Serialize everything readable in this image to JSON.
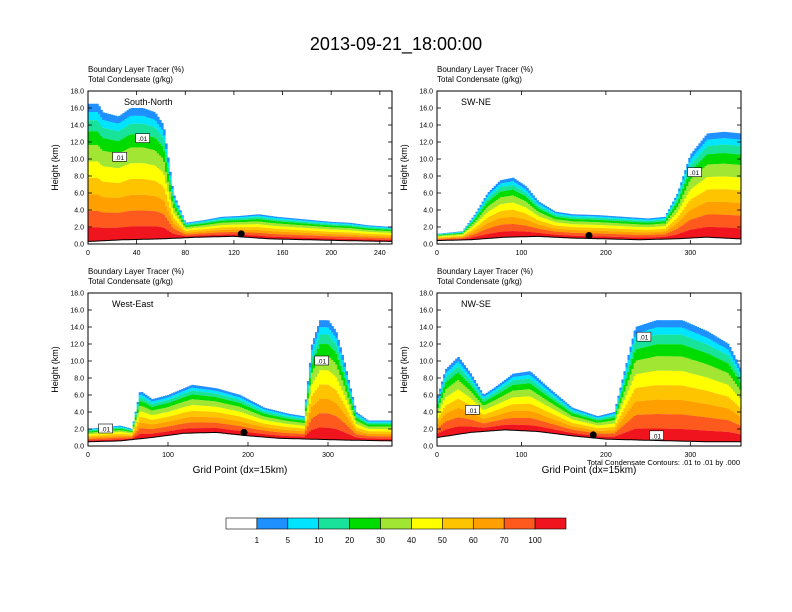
{
  "figure": {
    "title": "2013-09-21_18:00:00",
    "footer_note": "Total Condensate Contours: .01 to .01 by .000"
  },
  "colors": {
    "scale": [
      "#ffffff",
      "#1e90ff",
      "#00e5ff",
      "#19e39a",
      "#00dc00",
      "#a0e632",
      "#ffff00",
      "#ffc400",
      "#ffa000",
      "#ff5a1e",
      "#f0141e"
    ],
    "contour": "#000000",
    "frame": "#000000"
  },
  "colorbar": {
    "labels": [
      "1",
      "5",
      "10",
      "20",
      "30",
      "40",
      "50",
      "60",
      "70",
      "100"
    ]
  },
  "chart_data": [
    {
      "type": "heatmap",
      "panel_label": "South-North",
      "header_lines": [
        "Boundary Layer Tracer   (%)",
        "Total Condensate   (g/kg)"
      ],
      "ylabel": "Height (km)",
      "xlabel": "",
      "xlim": [
        0,
        250
      ],
      "ylim": [
        0,
        18
      ],
      "xticks": [
        0,
        40,
        80,
        120,
        160,
        200,
        240
      ],
      "yticks": [
        0,
        2,
        4,
        6,
        8,
        10,
        12,
        14,
        16,
        18
      ],
      "ytick_labels": [
        "0.0",
        "2.0",
        "4.0",
        "6.0",
        "8.0",
        "10.0",
        "12.0",
        "14.0",
        "16.0",
        "18.0"
      ],
      "contour_labels": [
        ".01",
        ".01"
      ],
      "contour_label_positions": [
        [
          26,
          10.2
        ],
        [
          45,
          12.4
        ]
      ],
      "marker_x": 126,
      "tracer_top_profile": {
        "x": [
          0,
          8,
          12,
          25,
          35,
          45,
          55,
          62,
          70,
          80,
          95,
          110,
          125,
          140,
          155,
          170,
          185,
          200,
          215,
          230,
          250
        ],
        "top": [
          16.5,
          16.5,
          15.5,
          15,
          16,
          16,
          15.5,
          14,
          6,
          2.5,
          2.8,
          3.2,
          3.3,
          3.5,
          3.2,
          3.0,
          2.8,
          2.6,
          2.5,
          2.2,
          2.0
        ]
      },
      "terrain_profile": {
        "x": [
          0,
          30,
          60,
          90,
          120,
          150,
          180,
          210,
          250
        ],
        "height": [
          0.3,
          0.5,
          0.6,
          0.8,
          0.9,
          0.6,
          0.5,
          0.4,
          0.3
        ]
      }
    },
    {
      "type": "heatmap",
      "panel_label": "SW-NE",
      "header_lines": [
        "Boundary Layer Tracer   (%)",
        "Total Condensate   (g/kg)"
      ],
      "ylabel": "Height (km)",
      "xlabel": "",
      "xlim": [
        0,
        360
      ],
      "ylim": [
        0,
        18
      ],
      "xticks": [
        0,
        100,
        200,
        300
      ],
      "yticks": [
        0,
        2,
        4,
        6,
        8,
        10,
        12,
        14,
        16,
        18
      ],
      "ytick_labels": [
        "0.0",
        "2.0",
        "4.0",
        "6.0",
        "8.0",
        "10.0",
        "12.0",
        "14.0",
        "16.0",
        "18.0"
      ],
      "contour_labels": [
        ".01"
      ],
      "contour_label_positions": [
        [
          305,
          8.4
        ]
      ],
      "marker_x": 180,
      "tracer_top_profile": {
        "x": [
          0,
          30,
          45,
          60,
          75,
          90,
          105,
          120,
          140,
          160,
          190,
          220,
          250,
          270,
          285,
          300,
          320,
          340,
          360
        ],
        "top": [
          1.2,
          1.5,
          3.5,
          6.0,
          7.5,
          7.8,
          6.8,
          5.0,
          3.8,
          3.5,
          3.4,
          3.2,
          3.0,
          3.2,
          6.0,
          10.5,
          13.0,
          13.2,
          13.0
        ]
      },
      "terrain_profile": {
        "x": [
          0,
          40,
          80,
          120,
          160,
          200,
          240,
          280,
          320,
          360
        ],
        "height": [
          0.4,
          0.5,
          0.8,
          0.9,
          0.7,
          0.6,
          0.5,
          0.6,
          0.8,
          0.6
        ]
      }
    },
    {
      "type": "heatmap",
      "panel_label": "West-East",
      "header_lines": [
        "Boundary Layer Tracer   (%)",
        "Total Condensate   (g/kg)"
      ],
      "ylabel": "Height (km)",
      "xlabel": "Grid Point (dx=15km)",
      "xlim": [
        0,
        380
      ],
      "ylim": [
        0,
        18
      ],
      "xticks": [
        0,
        100,
        200,
        300
      ],
      "yticks": [
        0,
        2,
        4,
        6,
        8,
        10,
        12,
        14,
        16,
        18
      ],
      "ytick_labels": [
        "0.0",
        "2.0",
        "4.0",
        "6.0",
        "8.0",
        "10.0",
        "12.0",
        "14.0",
        "16.0",
        "18.0"
      ],
      "contour_labels": [
        ".01",
        ".01"
      ],
      "contour_label_positions": [
        [
          22,
          2.0
        ],
        [
          292,
          10.0
        ]
      ],
      "marker_x": 195,
      "tracer_top_profile": {
        "x": [
          0,
          20,
          40,
          55,
          65,
          80,
          100,
          130,
          160,
          190,
          220,
          250,
          270,
          280,
          290,
          300,
          310,
          320,
          335,
          350,
          380
        ],
        "top": [
          2.0,
          2.2,
          2.4,
          2.0,
          6.5,
          5.5,
          6.0,
          7.2,
          6.8,
          6.0,
          4.5,
          3.8,
          3.5,
          12.0,
          14.8,
          14.8,
          13.5,
          10.0,
          4.0,
          3.0,
          3.0
        ]
      },
      "terrain_profile": {
        "x": [
          0,
          40,
          80,
          120,
          160,
          200,
          240,
          280,
          320,
          380
        ],
        "height": [
          0.5,
          0.6,
          1.0,
          1.5,
          1.6,
          1.2,
          0.9,
          0.8,
          0.7,
          0.6
        ]
      }
    },
    {
      "type": "heatmap",
      "panel_label": "NW-SE",
      "header_lines": [
        "Boundary Layer Tracer   (%)",
        "Total Condensate   (g/kg)"
      ],
      "ylabel": "Height (km)",
      "xlabel": "Grid Point (dx=15km)",
      "xlim": [
        0,
        360
      ],
      "ylim": [
        0,
        18
      ],
      "xticks": [
        0,
        100,
        200,
        300
      ],
      "yticks": [
        0,
        2,
        4,
        6,
        8,
        10,
        12,
        14,
        16,
        18
      ],
      "ytick_labels": [
        "0.0",
        "2.0",
        "4.0",
        "6.0",
        "8.0",
        "10.0",
        "12.0",
        "14.0",
        "16.0",
        "18.0"
      ],
      "contour_labels": [
        ".01",
        ".01",
        ".01"
      ],
      "contour_label_positions": [
        [
          42,
          4.2
        ],
        [
          245,
          12.8
        ],
        [
          260,
          1.2
        ]
      ],
      "marker_x": 185,
      "tracer_top_profile": {
        "x": [
          0,
          10,
          25,
          40,
          55,
          70,
          90,
          110,
          130,
          160,
          190,
          210,
          225,
          235,
          260,
          290,
          320,
          345,
          360
        ],
        "top": [
          5.5,
          9.0,
          10.5,
          8.5,
          6.0,
          7.0,
          8.5,
          8.8,
          7.0,
          4.5,
          3.5,
          4.0,
          10.0,
          14.0,
          14.8,
          14.8,
          13.5,
          12.0,
          9.0
        ]
      },
      "terrain_profile": {
        "x": [
          0,
          40,
          80,
          120,
          160,
          200,
          240,
          280,
          320,
          360
        ],
        "height": [
          1.0,
          1.6,
          1.9,
          1.7,
          1.2,
          0.8,
          0.7,
          0.6,
          0.5,
          0.5
        ]
      }
    }
  ]
}
